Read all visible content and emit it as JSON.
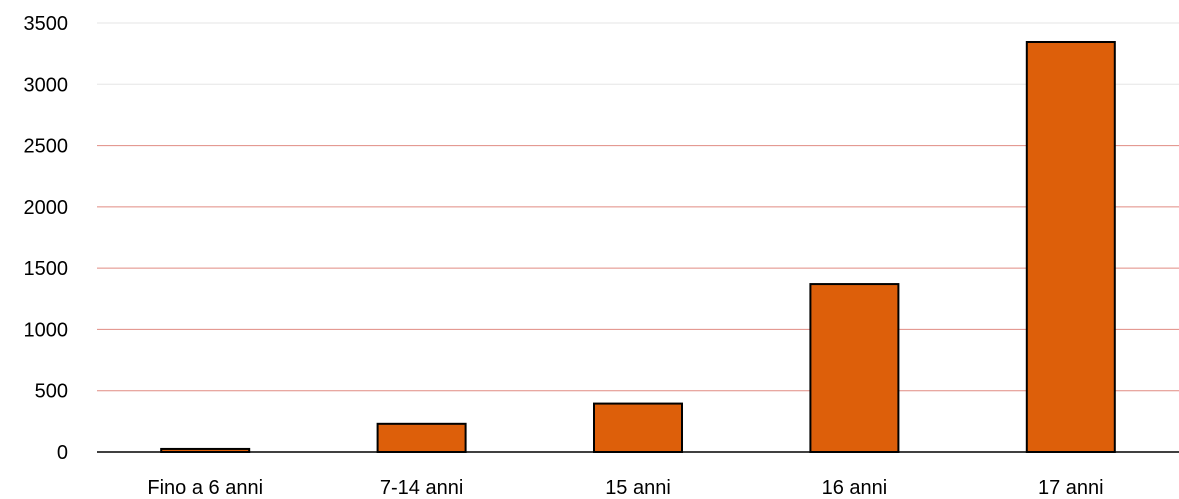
{
  "chart_data": {
    "type": "bar",
    "categories": [
      "Fino a 6 anni",
      "7-14 anni",
      "15 anni",
      "16 anni",
      "17 anni"
    ],
    "values": [
      25,
      230,
      395,
      1370,
      3345
    ],
    "title": "",
    "xlabel": "",
    "ylabel": "",
    "ylim": [
      0,
      3500
    ],
    "yticks": [
      0,
      500,
      1000,
      1500,
      2000,
      2500,
      3000,
      3500
    ],
    "grid": true,
    "legend": "none",
    "colors": {
      "bar_fill": "#dd5f0a",
      "bar_stroke": "#000000",
      "grid_red": "#e08b82",
      "grid_grey": "#e6e6e6",
      "axis": "#000000"
    }
  }
}
